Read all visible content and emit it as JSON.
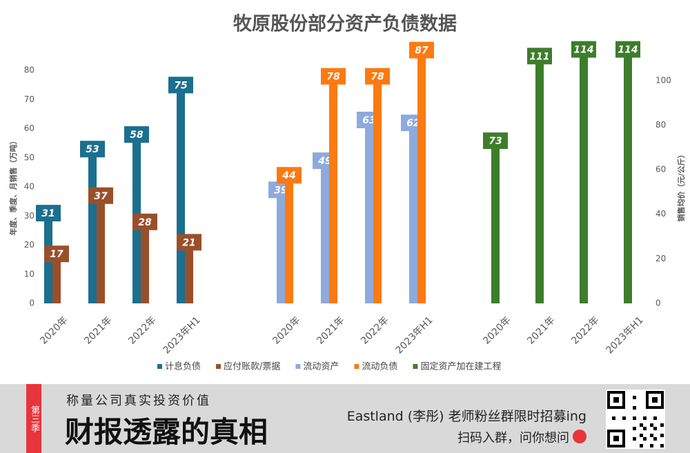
{
  "chart_data": [
    {
      "type": "bar",
      "title": "牧原股份部分资产负债数据",
      "ylabel": "年度、季度、月销售（万吨）",
      "ylim": [
        0,
        90
      ],
      "yticks": [
        0,
        10,
        20,
        30,
        40,
        50,
        60,
        70,
        80
      ],
      "categories": [
        "2020年",
        "2021年",
        "2022年",
        "2023年H1"
      ],
      "series": [
        {
          "name": "计息负债",
          "color": "#1b6f8f",
          "values": [
            31,
            53,
            58,
            75
          ]
        },
        {
          "name": "应付账款/票据",
          "color": "#9a4f2b",
          "values": [
            17,
            37,
            28,
            21
          ]
        }
      ]
    },
    {
      "type": "bar",
      "ylim": [
        0,
        90
      ],
      "categories": [
        "2020年",
        "2021年",
        "2022年",
        "2023年H1"
      ],
      "series": [
        {
          "name": "流动资产",
          "color": "#8eaadc",
          "values": [
            39,
            49,
            63,
            62
          ]
        },
        {
          "name": "流动负债",
          "color": "#fb7a12",
          "values": [
            44,
            78,
            78,
            87
          ]
        }
      ]
    },
    {
      "type": "bar",
      "y2label": "销售均价（元/公斤）",
      "y2lim": [
        0,
        117.6
      ],
      "y2ticks": [
        0,
        20,
        40,
        60,
        80,
        100
      ],
      "categories": [
        "2020年",
        "2021年",
        "2022年",
        "2023年H1"
      ],
      "series": [
        {
          "name": "固定资产加在建工程",
          "color": "#3d7d2b",
          "axis": "y2",
          "values": [
            73,
            111,
            114,
            114
          ]
        }
      ]
    }
  ],
  "banner": {
    "badge": "第三季",
    "subtitle": "称量公司真实投资价值",
    "title": "财报透露的真相",
    "line1": "Eastland (李彤) 老师粉丝群限时招募ing",
    "line2": "扫码入群，问你想问"
  }
}
